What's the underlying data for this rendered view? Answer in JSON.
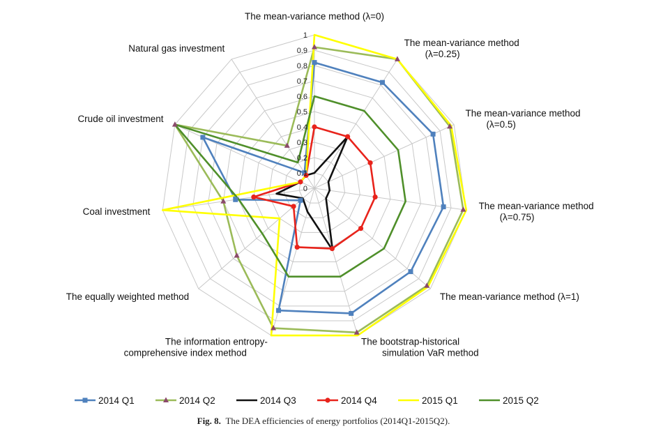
{
  "caption": {
    "prefix": "Fig. 8.",
    "text": "The DEA efficiencies of energy portfolios (2014Q1-2015Q2)."
  },
  "chart_data": {
    "type": "radar",
    "title": "",
    "range": [
      0,
      1
    ],
    "ticks": [
      "0",
      "0.1",
      "0.2",
      "0.3",
      "0.4",
      "0.5",
      "0.6",
      "0.7",
      "0.8",
      "0.9",
      "1"
    ],
    "grid": true,
    "legend_position": "bottom",
    "categories": [
      [
        "The mean-variance method (λ=0)"
      ],
      [
        "The mean-variance method",
        "(λ=0.25)"
      ],
      [
        "The mean-variance method",
        "(λ=0.5)"
      ],
      [
        "The mean-variance method",
        "(λ=0.75)"
      ],
      [
        "The mean-variance method (λ=1)"
      ],
      [
        "The bootstrap-historical",
        "simulation VaR method"
      ],
      [
        "The information entropy-",
        "comprehensive index method"
      ],
      [
        "The equally weighted method"
      ],
      [
        "Coal investment"
      ],
      [
        "Crude oil investment"
      ],
      [
        "Natural gas investment"
      ]
    ],
    "series": [
      {
        "name": "2014 Q1",
        "color": "#4f81bd",
        "marker": "square",
        "values": [
          0.82,
          0.82,
          0.85,
          0.85,
          0.83,
          0.85,
          0.83,
          0.12,
          0.52,
          0.8,
          0.12
        ]
      },
      {
        "name": "2014 Q2",
        "color": "#9bbb59",
        "marker": "triangle",
        "values": [
          0.92,
          1.0,
          0.97,
          0.98,
          0.97,
          0.98,
          0.95,
          0.67,
          0.6,
          1.0,
          0.33
        ]
      },
      {
        "name": "2014 Q3",
        "color": "#111111",
        "marker": "none",
        "values": [
          0.1,
          0.4,
          0.1,
          0.1,
          0.1,
          0.42,
          0.16,
          0.1,
          0.25,
          0.1,
          0.1
        ]
      },
      {
        "name": "2014 Q4",
        "color": "#e8231b",
        "marker": "circle",
        "values": [
          0.4,
          0.4,
          0.4,
          0.4,
          0.4,
          0.41,
          0.4,
          0.18,
          0.4,
          0.1,
          0.1
        ]
      },
      {
        "name": "2015 Q1",
        "color": "#ffff00",
        "marker": "none",
        "values": [
          1.0,
          1.0,
          0.98,
          1.0,
          0.98,
          1.0,
          1.0,
          0.3,
          1.0,
          0.1,
          0.1
        ]
      },
      {
        "name": "2015 Q2",
        "color": "#4f8f2a",
        "marker": "none",
        "values": [
          0.6,
          0.6,
          0.6,
          0.6,
          0.6,
          0.6,
          0.6,
          0.45,
          0.5,
          1.0,
          0.2
        ]
      }
    ]
  }
}
